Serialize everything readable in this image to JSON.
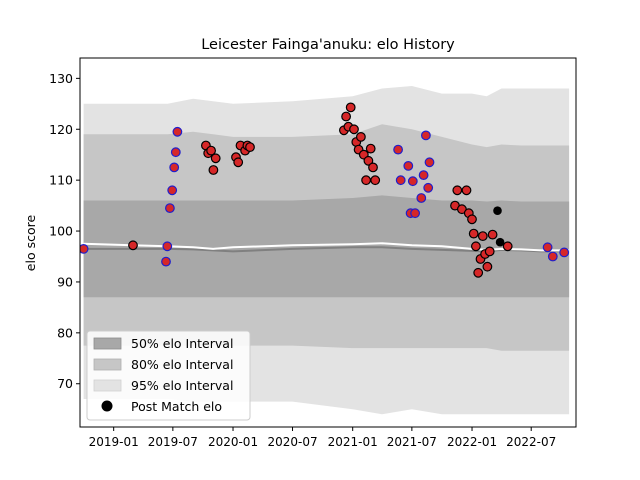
{
  "chart_data": {
    "type": "scatter",
    "title": "Leicester Fainga'anuku: elo History",
    "xlabel": "",
    "ylabel": "elo score",
    "xlim": [
      "2018-09-20",
      "2022-11-15"
    ],
    "ylim": [
      61.5,
      134
    ],
    "x_ticks": [
      "2019-01",
      "2019-07",
      "2020-01",
      "2020-07",
      "2021-01",
      "2021-07",
      "2022-01",
      "2022-07"
    ],
    "y_ticks": [
      70,
      80,
      90,
      100,
      110,
      120,
      130
    ],
    "grid": false,
    "legend": {
      "placement": "lower-left",
      "entries": [
        "50% elo Interval",
        "80% elo Interval",
        "95% elo Interval",
        "Post Match elo"
      ]
    },
    "colors": {
      "band_50": "#a8a8a8",
      "band_80": "#c6c6c6",
      "band_95": "#e3e3e3",
      "mean_line": "#808080",
      "median_line": "#ffffff",
      "point_fill": "#d62728",
      "point_edge_win": "#1f1fcc",
      "point_edge_other": "#000000",
      "post_match": "#000000"
    },
    "intervals": {
      "x": [
        "2018-10-01",
        "2019-06-15",
        "2019-09-01",
        "2019-11-01",
        "2020-01-01",
        "2020-07-01",
        "2021-01-01",
        "2021-04-01",
        "2021-07-01",
        "2021-10-01",
        "2022-01-01",
        "2022-02-15",
        "2022-04-01",
        "2022-06-01",
        "2022-08-01",
        "2022-10-25"
      ],
      "center": [
        96.5,
        96.5,
        96.4,
        96.2,
        96.0,
        96.5,
        96.8,
        96.8,
        96.5,
        96.3,
        96.1,
        96.0,
        96.3,
        96.2,
        96.0,
        96.0
      ],
      "median": [
        97.5,
        97.0,
        96.8,
        96.5,
        96.8,
        97.2,
        97.4,
        97.6,
        97.2,
        97.0,
        96.5,
        96.3,
        96.5,
        96.4,
        96.2,
        96.2
      ],
      "band50_low": [
        87.0,
        87.0,
        87.0,
        87.0,
        87.0,
        87.0,
        87.0,
        87.0,
        87.0,
        87.0,
        87.0,
        87.0,
        87.0,
        87.0,
        87.0,
        87.0
      ],
      "band50_high": [
        106.0,
        106.0,
        106.0,
        106.0,
        106.0,
        106.0,
        106.5,
        107.0,
        106.5,
        106.0,
        106.0,
        105.8,
        106.0,
        105.8,
        105.8,
        105.8
      ],
      "band80_low": [
        77.5,
        77.5,
        77.5,
        77.5,
        77.5,
        77.5,
        77.0,
        77.0,
        77.0,
        77.0,
        77.0,
        77.0,
        76.5,
        76.5,
        76.5,
        76.5
      ],
      "band80_high": [
        119.0,
        119.0,
        119.5,
        119.0,
        118.5,
        118.5,
        119.0,
        121.0,
        120.0,
        118.5,
        117.0,
        116.5,
        117.0,
        116.8,
        116.8,
        116.8
      ],
      "band95_low": [
        67.0,
        67.0,
        66.5,
        66.5,
        66.5,
        66.5,
        65.0,
        64.0,
        65.0,
        64.0,
        64.0,
        64.0,
        64.0,
        64.0,
        64.0,
        64.0
      ],
      "band95_high": [
        125.0,
        125.0,
        126.0,
        125.5,
        125.0,
        125.5,
        126.5,
        128.0,
        128.5,
        127.0,
        127.0,
        126.5,
        128.0,
        128.0,
        128.0,
        128.0
      ]
    },
    "points": [
      {
        "x": "2018-10-01",
        "y": 96.5,
        "edge": "win"
      },
      {
        "x": "2019-03-01",
        "y": 97.2,
        "edge": "other"
      },
      {
        "x": "2019-06-10",
        "y": 94.0,
        "edge": "win"
      },
      {
        "x": "2019-06-14",
        "y": 97.0,
        "edge": "win"
      },
      {
        "x": "2019-06-22",
        "y": 104.5,
        "edge": "win"
      },
      {
        "x": "2019-06-29",
        "y": 108.0,
        "edge": "win"
      },
      {
        "x": "2019-07-05",
        "y": 112.5,
        "edge": "win"
      },
      {
        "x": "2019-07-10",
        "y": 115.5,
        "edge": "win"
      },
      {
        "x": "2019-07-15",
        "y": 119.5,
        "edge": "win"
      },
      {
        "x": "2019-10-10",
        "y": 116.8,
        "edge": "other"
      },
      {
        "x": "2019-10-17",
        "y": 115.3,
        "edge": "other"
      },
      {
        "x": "2019-10-26",
        "y": 115.8,
        "edge": "other"
      },
      {
        "x": "2019-11-02",
        "y": 112.0,
        "edge": "other"
      },
      {
        "x": "2019-11-09",
        "y": 114.3,
        "edge": "other"
      },
      {
        "x": "2020-01-10",
        "y": 114.5,
        "edge": "other"
      },
      {
        "x": "2020-01-17",
        "y": 113.5,
        "edge": "other"
      },
      {
        "x": "2020-01-24",
        "y": 116.8,
        "edge": "other"
      },
      {
        "x": "2020-02-07",
        "y": 115.8,
        "edge": "other"
      },
      {
        "x": "2020-02-14",
        "y": 116.8,
        "edge": "other"
      },
      {
        "x": "2020-02-22",
        "y": 116.5,
        "edge": "other"
      },
      {
        "x": "2020-12-05",
        "y": 119.8,
        "edge": "other"
      },
      {
        "x": "2020-12-12",
        "y": 122.5,
        "edge": "other"
      },
      {
        "x": "2020-12-19",
        "y": 120.5,
        "edge": "other"
      },
      {
        "x": "2020-12-26",
        "y": 124.3,
        "edge": "other"
      },
      {
        "x": "2021-01-05",
        "y": 120.0,
        "edge": "other"
      },
      {
        "x": "2021-01-12",
        "y": 117.5,
        "edge": "other"
      },
      {
        "x": "2021-01-19",
        "y": 116.0,
        "edge": "other"
      },
      {
        "x": "2021-01-26",
        "y": 118.5,
        "edge": "other"
      },
      {
        "x": "2021-02-04",
        "y": 115.0,
        "edge": "other"
      },
      {
        "x": "2021-02-11",
        "y": 110.0,
        "edge": "other"
      },
      {
        "x": "2021-02-18",
        "y": 113.8,
        "edge": "other"
      },
      {
        "x": "2021-02-25",
        "y": 116.2,
        "edge": "other"
      },
      {
        "x": "2021-03-04",
        "y": 112.5,
        "edge": "other"
      },
      {
        "x": "2021-03-11",
        "y": 110.0,
        "edge": "other"
      },
      {
        "x": "2021-05-20",
        "y": 116.0,
        "edge": "win"
      },
      {
        "x": "2021-05-28",
        "y": 110.0,
        "edge": "win"
      },
      {
        "x": "2021-06-20",
        "y": 112.8,
        "edge": "win"
      },
      {
        "x": "2021-06-27",
        "y": 103.5,
        "edge": "win"
      },
      {
        "x": "2021-07-04",
        "y": 109.8,
        "edge": "win"
      },
      {
        "x": "2021-07-11",
        "y": 103.5,
        "edge": "win"
      },
      {
        "x": "2021-07-30",
        "y": 106.5,
        "edge": "win"
      },
      {
        "x": "2021-08-06",
        "y": 111.0,
        "edge": "win"
      },
      {
        "x": "2021-08-13",
        "y": 118.8,
        "edge": "win"
      },
      {
        "x": "2021-08-20",
        "y": 108.5,
        "edge": "win"
      },
      {
        "x": "2021-08-24",
        "y": 113.5,
        "edge": "win"
      },
      {
        "x": "2021-11-10",
        "y": 105.0,
        "edge": "other"
      },
      {
        "x": "2021-11-17",
        "y": 108.0,
        "edge": "other"
      },
      {
        "x": "2021-12-01",
        "y": 104.3,
        "edge": "other"
      },
      {
        "x": "2021-12-15",
        "y": 108.0,
        "edge": "other"
      },
      {
        "x": "2021-12-22",
        "y": 103.5,
        "edge": "other"
      },
      {
        "x": "2022-01-01",
        "y": 102.3,
        "edge": "other"
      },
      {
        "x": "2022-01-06",
        "y": 99.5,
        "edge": "other"
      },
      {
        "x": "2022-01-13",
        "y": 97.0,
        "edge": "other"
      },
      {
        "x": "2022-01-20",
        "y": 91.8,
        "edge": "other"
      },
      {
        "x": "2022-01-27",
        "y": 94.5,
        "edge": "other"
      },
      {
        "x": "2022-02-03",
        "y": 99.0,
        "edge": "other"
      },
      {
        "x": "2022-02-10",
        "y": 95.5,
        "edge": "other"
      },
      {
        "x": "2022-02-17",
        "y": 93.0,
        "edge": "other"
      },
      {
        "x": "2022-02-24",
        "y": 96.0,
        "edge": "other"
      },
      {
        "x": "2022-03-05",
        "y": 99.3,
        "edge": "other"
      },
      {
        "x": "2022-04-20",
        "y": 97.0,
        "edge": "other"
      },
      {
        "x": "2022-08-20",
        "y": 96.8,
        "edge": "win"
      },
      {
        "x": "2022-09-05",
        "y": 95.0,
        "edge": "win"
      },
      {
        "x": "2022-10-10",
        "y": 95.8,
        "edge": "win"
      }
    ],
    "post_match": [
      {
        "x": "2022-03-20",
        "y": 104.0
      },
      {
        "x": "2022-03-28",
        "y": 97.8
      }
    ]
  }
}
